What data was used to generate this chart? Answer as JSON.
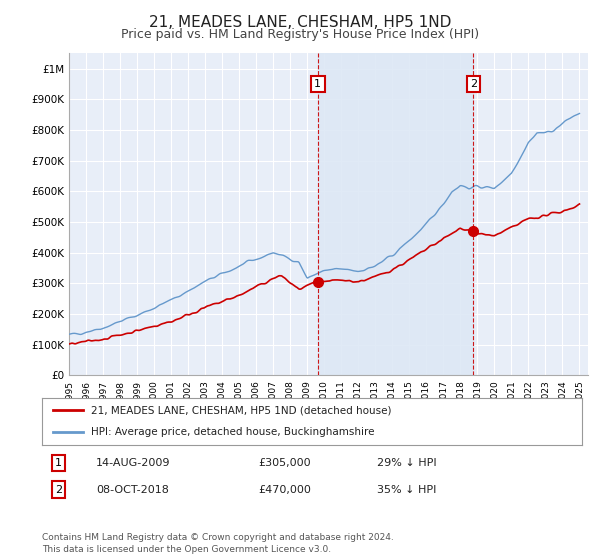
{
  "title": "21, MEADES LANE, CHESHAM, HP5 1ND",
  "subtitle": "Price paid vs. HM Land Registry's House Price Index (HPI)",
  "title_fontsize": 11,
  "subtitle_fontsize": 9,
  "background_color": "#ffffff",
  "plot_bg_color": "#e8eef8",
  "grid_color": "#ffffff",
  "ylabel_ticks": [
    "£0",
    "£100K",
    "£200K",
    "£300K",
    "£400K",
    "£500K",
    "£600K",
    "£700K",
    "£800K",
    "£900K",
    "£1M"
  ],
  "ytick_values": [
    0,
    100000,
    200000,
    300000,
    400000,
    500000,
    600000,
    700000,
    800000,
    900000,
    1000000
  ],
  "ylim": [
    0,
    1050000
  ],
  "hpi_color": "#6699cc",
  "price_color": "#cc0000",
  "dashed_line_color": "#cc0000",
  "fill_color": "#dde8f5",
  "transaction1_x": 2009.62,
  "transaction1_y": 305000,
  "transaction2_x": 2018.77,
  "transaction2_y": 470000,
  "legend_label_price": "21, MEADES LANE, CHESHAM, HP5 1ND (detached house)",
  "legend_label_hpi": "HPI: Average price, detached house, Buckinghamshire",
  "footnote1": "Contains HM Land Registry data © Crown copyright and database right 2024.",
  "footnote2": "This data is licensed under the Open Government Licence v3.0.",
  "xmin": 1995,
  "xmax": 2025.5
}
